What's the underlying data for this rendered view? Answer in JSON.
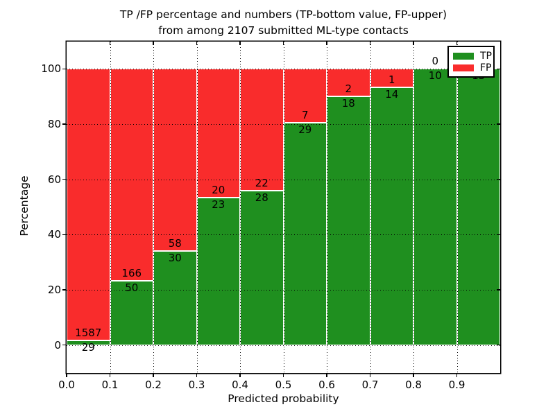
{
  "figure": {
    "title_line1": "TP /FP percentage and numbers (TP-bottom value, FP-upper)",
    "title_line2": "from among 2107 submitted ML-type contacts"
  },
  "chart_data": {
    "type": "bar",
    "stacked": true,
    "normalized": "each bin stacked to 100%",
    "title": "TP /FP percentage and numbers (TP-bottom value, FP-upper) from among 2107 submitted ML-type contacts",
    "xlabel": "Predicted probability",
    "ylabel": "Percentage",
    "total_contacts": 2107,
    "bin_edges": [
      0.0,
      0.1,
      0.2,
      0.3,
      0.4,
      0.5,
      0.6,
      0.7,
      0.8,
      0.9,
      1.0
    ],
    "x_tick_labels": [
      "0.0",
      "0.1",
      "0.2",
      "0.3",
      "0.4",
      "0.5",
      "0.6",
      "0.7",
      "0.8",
      "0.9"
    ],
    "y_ticks": [
      0,
      20,
      40,
      60,
      80,
      100
    ],
    "y_tick_labels": [
      "0",
      "20",
      "40",
      "60",
      "80",
      "100"
    ],
    "xlim": [
      0,
      1
    ],
    "ylim": [
      -10,
      110
    ],
    "grid": "dotted",
    "series": [
      {
        "name": "TP",
        "color": "#1f8f1f",
        "values": [
          29,
          50,
          30,
          23,
          28,
          29,
          18,
          14,
          10,
          13
        ]
      },
      {
        "name": "FP",
        "color": "#f92c2c",
        "values": [
          1587,
          166,
          58,
          20,
          22,
          7,
          2,
          1,
          0,
          0
        ]
      }
    ],
    "legend_position": "upper-right"
  },
  "legend": {
    "items": [
      {
        "label": "TP",
        "color": "#1f8f1f"
      },
      {
        "label": "FP",
        "color": "#f92c2c"
      }
    ]
  }
}
